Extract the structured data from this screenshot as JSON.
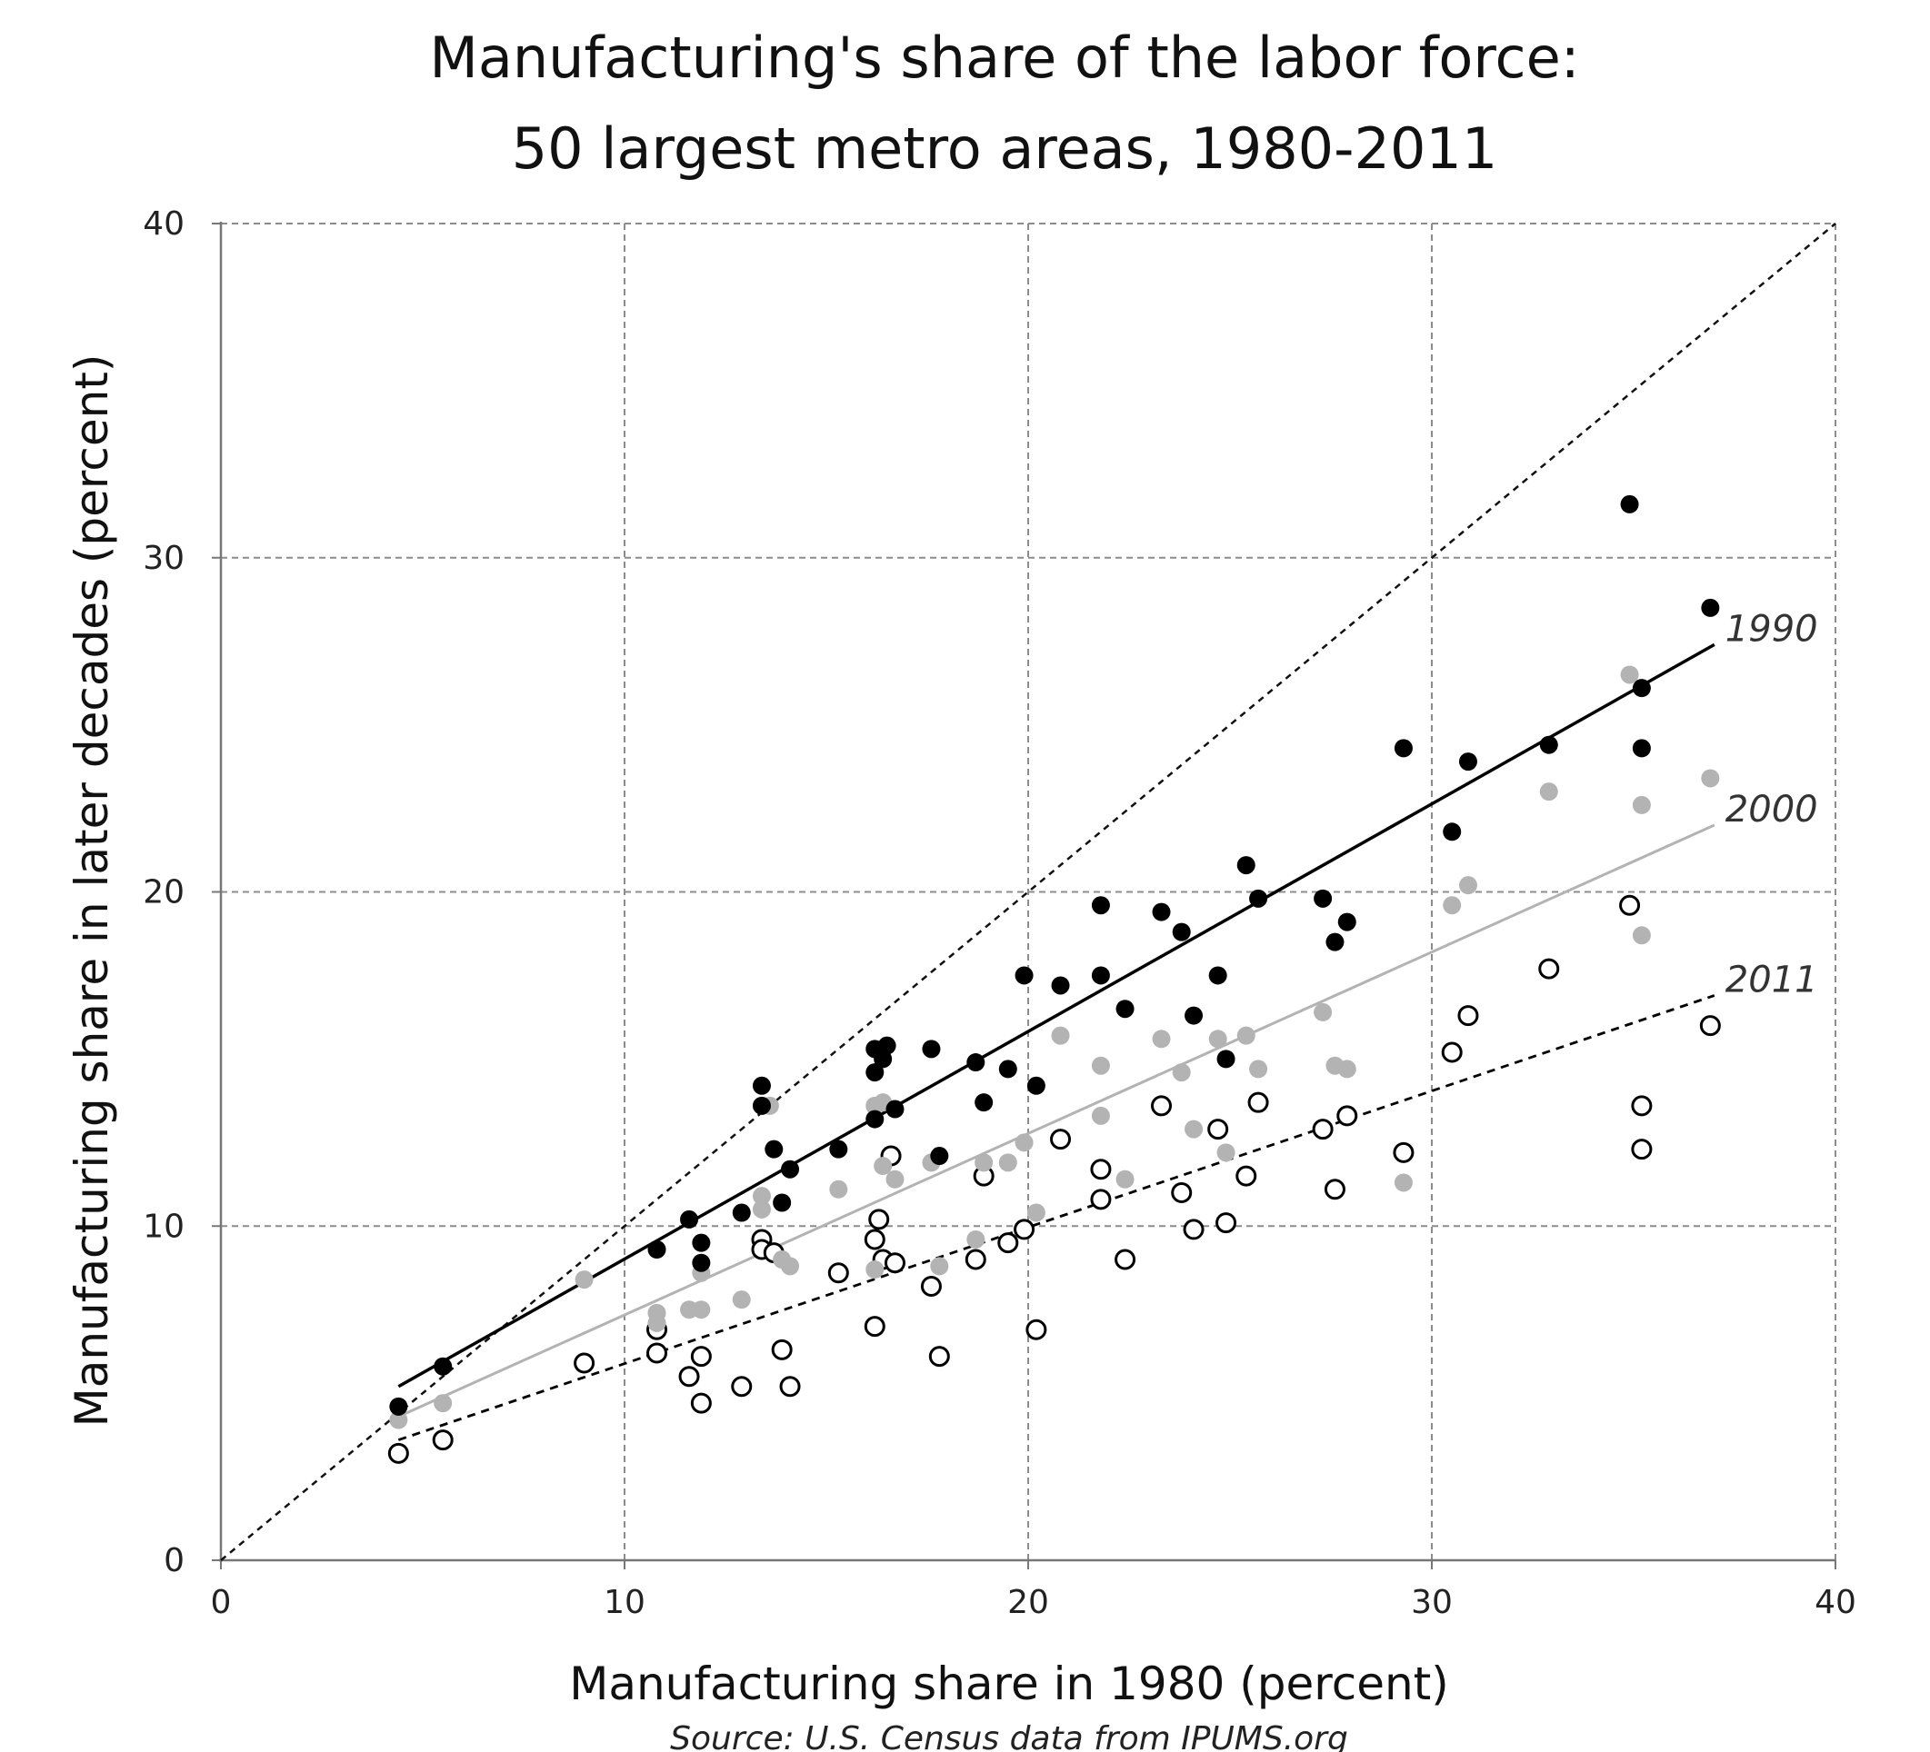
{
  "chart_data": {
    "type": "scatter",
    "title": [
      "Manufacturing's share of the labor force:",
      "50 largest metro areas, 1980-2011"
    ],
    "xlabel": "Manufacturing share in 1980 (percent)",
    "ylabel": "Manufacturing share in later decades (percent)",
    "source": "Source: U.S. Census data from IPUMS.org",
    "xlim": [
      0,
      40
    ],
    "ylim": [
      0,
      40
    ],
    "x_ticks": [
      0,
      10,
      20,
      30,
      40
    ],
    "y_ticks": [
      0,
      10,
      20,
      30,
      40
    ],
    "grid": true,
    "reference_line": {
      "style": "dashed",
      "from": [
        0,
        0
      ],
      "to": [
        40,
        40
      ]
    },
    "series": [
      {
        "name": "1990",
        "marker": "filled",
        "color": "#000000",
        "fit": {
          "x": [
            4.4,
            37
          ],
          "y": [
            5.2,
            27.4
          ],
          "style": "solid",
          "color": "#000000"
        },
        "points": [
          [
            4.4,
            4.6
          ],
          [
            5.5,
            5.8
          ],
          [
            10.8,
            9.3
          ],
          [
            11.6,
            10.2
          ],
          [
            11.9,
            9.5
          ],
          [
            11.9,
            8.9
          ],
          [
            12.9,
            10.4
          ],
          [
            13.4,
            14.2
          ],
          [
            13.4,
            13.6
          ],
          [
            13.7,
            12.3
          ],
          [
            13.9,
            10.7
          ],
          [
            14.1,
            11.7
          ],
          [
            15.3,
            12.3
          ],
          [
            16.2,
            15.3
          ],
          [
            16.2,
            14.6
          ],
          [
            16.2,
            13.2
          ],
          [
            16.4,
            15.0
          ],
          [
            16.5,
            15.4
          ],
          [
            16.7,
            13.5
          ],
          [
            17.6,
            15.3
          ],
          [
            17.8,
            12.1
          ],
          [
            18.7,
            14.9
          ],
          [
            18.9,
            13.7
          ],
          [
            19.5,
            14.7
          ],
          [
            19.9,
            17.5
          ],
          [
            20.2,
            14.2
          ],
          [
            20.8,
            17.2
          ],
          [
            21.8,
            19.6
          ],
          [
            21.8,
            17.5
          ],
          [
            22.4,
            16.5
          ],
          [
            23.3,
            19.4
          ],
          [
            23.8,
            18.8
          ],
          [
            24.1,
            16.3
          ],
          [
            24.7,
            17.5
          ],
          [
            24.9,
            15.0
          ],
          [
            25.4,
            20.8
          ],
          [
            25.7,
            19.8
          ],
          [
            27.3,
            19.8
          ],
          [
            27.6,
            18.5
          ],
          [
            27.9,
            19.1
          ],
          [
            29.3,
            24.3
          ],
          [
            30.5,
            21.8
          ],
          [
            30.9,
            23.9
          ],
          [
            32.9,
            24.4
          ],
          [
            34.9,
            31.6
          ],
          [
            35.2,
            26.1
          ],
          [
            35.2,
            24.3
          ],
          [
            36.9,
            28.5
          ]
        ]
      },
      {
        "name": "2000",
        "marker": "filled",
        "color": "#b3b3b3",
        "fit": {
          "x": [
            4.4,
            37
          ],
          "y": [
            4.3,
            22.0
          ],
          "style": "solid",
          "color": "#b3b3b3"
        },
        "points": [
          [
            4.4,
            4.2
          ],
          [
            5.5,
            4.7
          ],
          [
            9.0,
            8.4
          ],
          [
            10.8,
            7.4
          ],
          [
            10.8,
            7.1
          ],
          [
            11.6,
            7.5
          ],
          [
            11.9,
            8.6
          ],
          [
            11.9,
            7.5
          ],
          [
            12.9,
            7.8
          ],
          [
            13.4,
            10.9
          ],
          [
            13.4,
            10.5
          ],
          [
            13.6,
            13.6
          ],
          [
            13.9,
            9.0
          ],
          [
            14.1,
            8.8
          ],
          [
            15.3,
            11.1
          ],
          [
            16.2,
            13.6
          ],
          [
            16.4,
            13.7
          ],
          [
            16.2,
            8.7
          ],
          [
            16.4,
            11.8
          ],
          [
            16.7,
            11.4
          ],
          [
            17.6,
            11.9
          ],
          [
            17.8,
            8.8
          ],
          [
            18.7,
            9.6
          ],
          [
            18.9,
            11.9
          ],
          [
            19.5,
            11.9
          ],
          [
            19.9,
            12.5
          ],
          [
            20.2,
            10.4
          ],
          [
            20.8,
            15.7
          ],
          [
            21.8,
            14.8
          ],
          [
            21.8,
            13.3
          ],
          [
            22.4,
            11.4
          ],
          [
            23.3,
            15.6
          ],
          [
            23.8,
            14.6
          ],
          [
            24.1,
            12.9
          ],
          [
            24.7,
            15.6
          ],
          [
            24.9,
            12.2
          ],
          [
            25.4,
            15.7
          ],
          [
            25.7,
            14.7
          ],
          [
            27.3,
            16.4
          ],
          [
            27.6,
            14.8
          ],
          [
            27.9,
            14.7
          ],
          [
            29.3,
            11.3
          ],
          [
            30.5,
            19.6
          ],
          [
            30.9,
            20.2
          ],
          [
            32.9,
            23.0
          ],
          [
            34.9,
            26.5
          ],
          [
            35.2,
            22.6
          ],
          [
            35.2,
            18.7
          ],
          [
            36.9,
            23.4
          ]
        ]
      },
      {
        "name": "2011",
        "marker": "open",
        "color": "#000000",
        "fit": {
          "x": [
            4.4,
            37
          ],
          "y": [
            3.6,
            16.9
          ],
          "style": "dashed",
          "color": "#000000"
        },
        "points": [
          [
            4.4,
            3.2
          ],
          [
            5.5,
            3.6
          ],
          [
            9.0,
            5.9
          ],
          [
            10.8,
            6.2
          ],
          [
            10.8,
            6.9
          ],
          [
            11.6,
            5.5
          ],
          [
            11.9,
            6.1
          ],
          [
            11.9,
            4.7
          ],
          [
            12.9,
            5.2
          ],
          [
            13.4,
            9.6
          ],
          [
            13.4,
            9.3
          ],
          [
            13.7,
            9.2
          ],
          [
            13.9,
            6.3
          ],
          [
            14.1,
            5.2
          ],
          [
            15.3,
            8.6
          ],
          [
            16.2,
            9.6
          ],
          [
            16.2,
            7.0
          ],
          [
            16.3,
            10.2
          ],
          [
            16.4,
            9.0
          ],
          [
            16.6,
            12.1
          ],
          [
            16.7,
            8.9
          ],
          [
            17.6,
            8.2
          ],
          [
            17.8,
            6.1
          ],
          [
            18.7,
            9.0
          ],
          [
            18.9,
            11.5
          ],
          [
            19.5,
            9.5
          ],
          [
            19.9,
            9.9
          ],
          [
            20.2,
            6.9
          ],
          [
            20.8,
            12.6
          ],
          [
            21.8,
            11.7
          ],
          [
            21.8,
            10.8
          ],
          [
            22.4,
            9.0
          ],
          [
            23.3,
            13.6
          ],
          [
            23.8,
            11.0
          ],
          [
            24.1,
            9.9
          ],
          [
            24.7,
            12.9
          ],
          [
            24.9,
            10.1
          ],
          [
            25.4,
            11.5
          ],
          [
            25.7,
            13.7
          ],
          [
            27.3,
            12.9
          ],
          [
            27.6,
            11.1
          ],
          [
            27.9,
            13.3
          ],
          [
            29.3,
            12.2
          ],
          [
            30.5,
            15.2
          ],
          [
            30.9,
            16.3
          ],
          [
            32.9,
            17.7
          ],
          [
            34.9,
            19.6
          ],
          [
            35.2,
            13.6
          ],
          [
            35.2,
            12.3
          ],
          [
            36.9,
            16.0
          ]
        ]
      }
    ]
  }
}
